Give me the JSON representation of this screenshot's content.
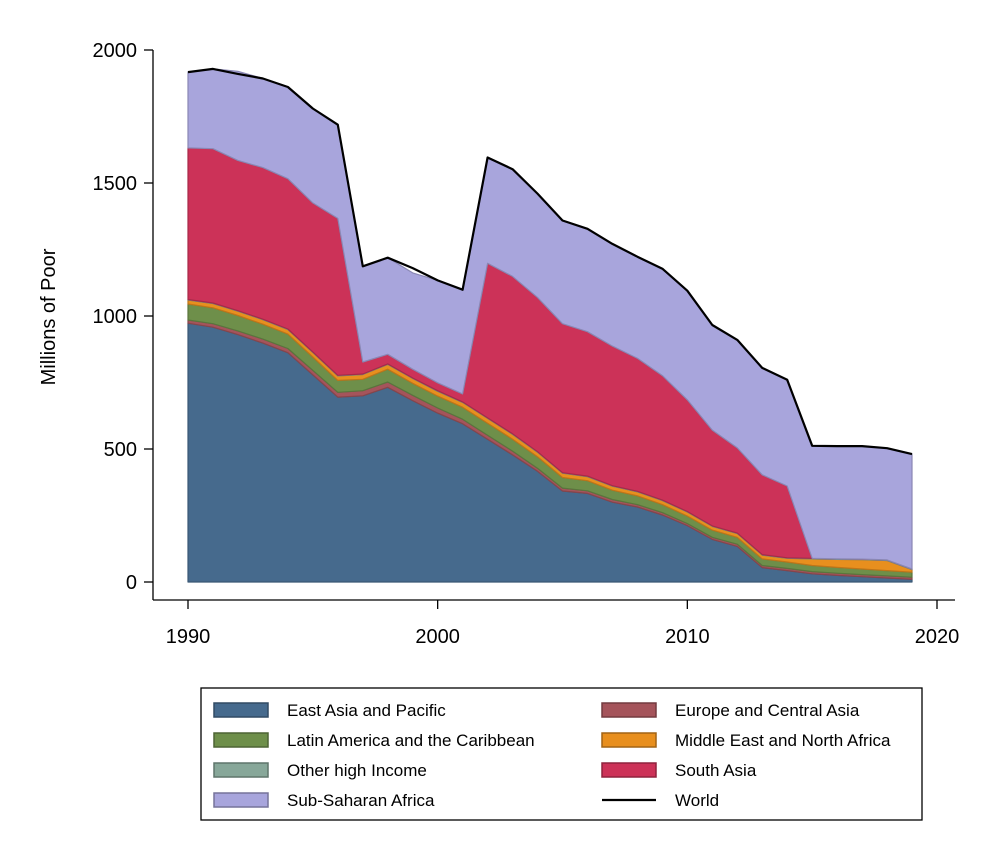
{
  "chart_data": {
    "type": "area",
    "stacked": true,
    "title": "",
    "xlabel": "",
    "ylabel": "Millions of Poor",
    "xlim": [
      1990,
      2020
    ],
    "ylim": [
      0,
      2000
    ],
    "x_ticks": [
      1990,
      2000,
      2010,
      2020
    ],
    "y_ticks": [
      0,
      500,
      1000,
      1500,
      2000
    ],
    "grid": false,
    "legend_position": "bottom",
    "x": [
      1990,
      1991,
      1992,
      1993,
      1994,
      1995,
      1996,
      1997,
      1998,
      1999,
      2000,
      2001,
      2002,
      2003,
      2004,
      2005,
      2006,
      2007,
      2008,
      2009,
      2010,
      2011,
      2012,
      2013,
      2014,
      2015,
      2016,
      2017,
      2018,
      2019
    ],
    "series": [
      {
        "name": "East Asia and Pacific",
        "color": "#466a8d",
        "values": [
          973,
          958,
          930,
          898,
          862,
          779,
          695,
          700,
          732,
          682,
          635,
          595,
          537,
          478,
          416,
          342,
          333,
          300,
          282,
          252,
          212,
          160,
          134,
          54,
          43,
          31,
          25,
          20,
          15,
          10
        ]
      },
      {
        "name": "Europe and Central Asia",
        "color": "#a5545b",
        "values": [
          12,
          13,
          14,
          15,
          16,
          17,
          18,
          19,
          20,
          20,
          19,
          17,
          15,
          14,
          12,
          11,
          10,
          10,
          9,
          9,
          8,
          8,
          8,
          8,
          8,
          8,
          8,
          8,
          8,
          8
        ]
      },
      {
        "name": "Latin America and the Caribbean",
        "color": "#6e8f4a",
        "values": [
          60,
          60,
          58,
          56,
          54,
          50,
          45,
          43,
          48,
          45,
          45,
          45,
          45,
          45,
          43,
          40,
          38,
          35,
          33,
          30,
          28,
          27,
          26,
          25,
          24,
          23,
          22,
          21,
          20,
          19
        ]
      },
      {
        "name": "Middle East and North Africa",
        "color": "#e88f1e",
        "values": [
          15,
          16,
          16,
          17,
          17,
          17,
          17,
          18,
          18,
          18,
          18,
          18,
          18,
          18,
          17,
          16,
          15,
          15,
          15,
          15,
          15,
          14,
          14,
          14,
          14,
          25,
          30,
          35,
          38,
          10
        ]
      },
      {
        "name": "Other high Income",
        "color": "#87a799",
        "values": [
          2,
          2,
          2,
          2,
          2,
          2,
          2,
          2,
          2,
          2,
          2,
          2,
          2,
          2,
          2,
          2,
          2,
          2,
          2,
          2,
          2,
          2,
          2,
          2,
          2,
          2,
          2,
          2,
          2,
          2
        ]
      },
      {
        "name": "South Asia",
        "color": "#cc3258",
        "values": [
          570,
          580,
          565,
          570,
          565,
          560,
          590,
          45,
          36,
          33,
          30,
          30,
          581,
          592,
          580,
          560,
          543,
          525,
          500,
          468,
          420,
          360,
          320,
          300,
          270,
          0,
          0,
          0,
          0,
          0
        ]
      },
      {
        "name": "Sub-Saharan Africa",
        "color": "#a8a5dc",
        "values": [
          285,
          300,
          335,
          335,
          345,
          355,
          350,
          360,
          363,
          362,
          385,
          392,
          398,
          403,
          390,
          388,
          387,
          384,
          382,
          402,
          410,
          395,
          406,
          402,
          399,
          423,
          424,
          425,
          420,
          432
        ]
      },
      {
        "name": "World",
        "color": "#000000",
        "type": "line",
        "values": [
          1917,
          1929,
          1910,
          1893,
          1861,
          1780,
          1719,
          1187,
          1219,
          1180,
          1134,
          1099,
          1596,
          1552,
          1460,
          1359,
          1328,
          1271,
          1223,
          1178,
          1095,
          966,
          910,
          805,
          760,
          512,
          511,
          511,
          503,
          481
        ]
      }
    ],
    "legend": [
      {
        "name": "East Asia and Pacific",
        "color": "#466a8d",
        "marker": "box"
      },
      {
        "name": "Europe and Central Asia",
        "color": "#a5545b",
        "marker": "box"
      },
      {
        "name": "Latin America and the Caribbean",
        "color": "#6e8f4a",
        "marker": "box"
      },
      {
        "name": "Middle East and North Africa",
        "color": "#e88f1e",
        "marker": "box"
      },
      {
        "name": "Other high Income",
        "color": "#87a799",
        "marker": "box"
      },
      {
        "name": "South Asia",
        "color": "#cc3258",
        "marker": "box"
      },
      {
        "name": "Sub-Saharan Africa",
        "color": "#a8a5dc",
        "marker": "box"
      },
      {
        "name": "World",
        "color": "#000000",
        "marker": "line"
      }
    ]
  }
}
